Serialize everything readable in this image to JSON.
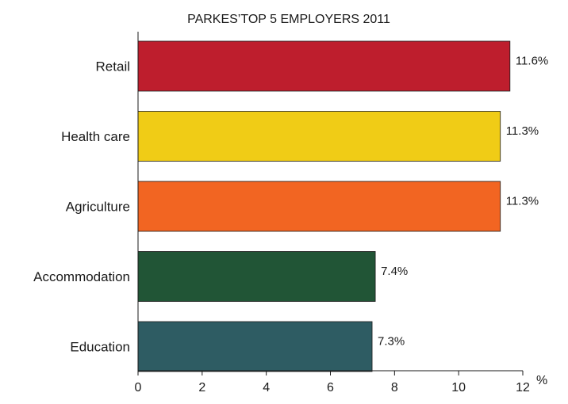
{
  "chart_data": {
    "type": "bar",
    "orientation": "horizontal",
    "title": "PARKES’TOP 5 EMPLOYERS 2011",
    "categories": [
      "Retail",
      "Health care",
      "Agriculture",
      "Accommodation",
      "Education"
    ],
    "values": [
      11.6,
      11.3,
      11.3,
      7.4,
      7.3
    ],
    "value_labels": [
      "11.6%",
      "11.3%",
      "11.3%",
      "7.4%",
      "7.3%"
    ],
    "colors": [
      "#be1e2d",
      "#f0cc16",
      "#f26522",
      "#215536",
      "#2e5c63"
    ],
    "xlabel": "%",
    "ylabel": "",
    "xlim": [
      0,
      12
    ],
    "xticks": [
      0,
      2,
      4,
      6,
      8,
      10,
      12
    ],
    "grid": false,
    "legend": "none"
  }
}
